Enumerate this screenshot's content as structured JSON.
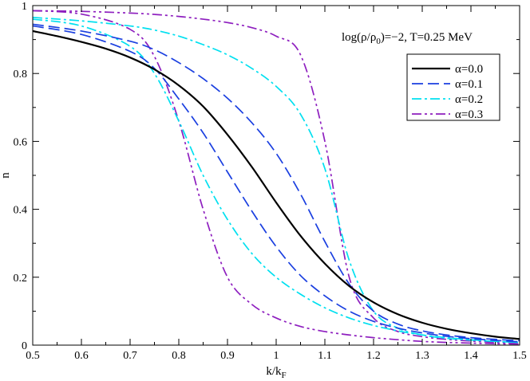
{
  "chart_data": {
    "type": "line",
    "xlabel": "k/k",
    "xlabel_sub": "F",
    "ylabel": "n",
    "xlim": [
      0.5,
      1.5
    ],
    "ylim": [
      0,
      1
    ],
    "xticks": [
      0.5,
      0.6,
      0.7,
      0.8,
      0.9,
      1.0,
      1.1,
      1.2,
      1.3,
      1.4,
      1.5
    ],
    "xtick_labels": [
      "0.5",
      "0.6",
      "0.7",
      "0.8",
      "0.9",
      "1",
      "1.1",
      "1.2",
      "1.3",
      "1.4",
      "1.5"
    ],
    "yticks": [
      0,
      0.2,
      0.4,
      0.6,
      0.8,
      1.0
    ],
    "ytick_labels": [
      "0",
      "0.2",
      "0.4",
      "0.6",
      "0.8",
      "1"
    ],
    "annotation": {
      "prefix": "log(ρ/ρ",
      "sub": "0",
      "suffix": ")=−2, T=0.25 MeV"
    },
    "legend_position": "top-right",
    "grid": false,
    "series": [
      {
        "name": "α=0.0",
        "color": "#000000",
        "dash": "solid",
        "x": [
          0.5,
          0.55,
          0.6,
          0.65,
          0.7,
          0.75,
          0.8,
          0.85,
          0.9,
          0.95,
          1.0,
          1.05,
          1.1,
          1.15,
          1.2,
          1.25,
          1.3,
          1.35,
          1.4,
          1.45,
          1.5
        ],
        "y": [
          0.925,
          0.91,
          0.893,
          0.873,
          0.847,
          0.812,
          0.765,
          0.703,
          0.62,
          0.525,
          0.42,
          0.322,
          0.24,
          0.174,
          0.126,
          0.091,
          0.066,
          0.048,
          0.035,
          0.025,
          0.018
        ]
      },
      {
        "name": "α=0.1",
        "color": "#1a3fe0",
        "dash": "long-dash",
        "x": [
          0.5,
          0.6,
          0.7,
          0.75,
          0.8,
          0.85,
          0.9,
          0.95,
          1.0,
          1.05,
          1.1,
          1.15,
          1.2,
          1.25,
          1.3,
          1.35,
          1.4,
          1.45,
          1.5
        ],
        "y_upper": [
          0.945,
          0.925,
          0.895,
          0.87,
          0.832,
          0.785,
          0.727,
          0.655,
          0.565,
          0.445,
          0.305,
          0.18,
          0.1,
          0.062,
          0.042,
          0.03,
          0.022,
          0.017,
          0.013
        ],
        "y_lower": [
          0.94,
          0.915,
          0.865,
          0.815,
          0.725,
          0.625,
          0.51,
          0.395,
          0.29,
          0.205,
          0.145,
          0.1,
          0.07,
          0.05,
          0.036,
          0.026,
          0.019,
          0.014,
          0.01
        ]
      },
      {
        "name": "α=0.2",
        "color": "#00e0f0",
        "dash": "dash-dot",
        "x": [
          0.5,
          0.6,
          0.7,
          0.75,
          0.8,
          0.85,
          0.9,
          0.95,
          1.0,
          1.05,
          1.1,
          1.15,
          1.2,
          1.25,
          1.3,
          1.35,
          1.4,
          1.45,
          1.5
        ],
        "y_upper": [
          0.965,
          0.955,
          0.94,
          0.928,
          0.91,
          0.885,
          0.855,
          0.815,
          0.762,
          0.68,
          0.52,
          0.25,
          0.1,
          0.05,
          0.03,
          0.02,
          0.015,
          0.011,
          0.008
        ],
        "y_lower": [
          0.96,
          0.94,
          0.88,
          0.8,
          0.66,
          0.5,
          0.37,
          0.27,
          0.2,
          0.15,
          0.11,
          0.08,
          0.058,
          0.042,
          0.03,
          0.022,
          0.016,
          0.011,
          0.008
        ]
      },
      {
        "name": "α=0.3",
        "color": "#8e1fbf",
        "dash": "dash-dot-dot",
        "x": [
          0.5,
          0.6,
          0.7,
          0.75,
          0.8,
          0.85,
          0.9,
          0.95,
          1.0,
          1.05,
          1.1,
          1.15,
          1.2,
          1.25,
          1.3,
          1.35,
          1.4,
          1.45,
          1.5
        ],
        "y_upper": [
          0.985,
          0.983,
          0.978,
          0.974,
          0.968,
          0.96,
          0.95,
          0.935,
          0.91,
          0.855,
          0.6,
          0.2,
          0.08,
          0.04,
          0.025,
          0.017,
          0.012,
          0.008,
          0.005
        ],
        "y_lower": [
          0.985,
          0.975,
          0.93,
          0.85,
          0.66,
          0.4,
          0.2,
          0.12,
          0.08,
          0.055,
          0.04,
          0.03,
          0.022,
          0.016,
          0.011,
          0.008,
          0.006,
          0.004,
          0.003
        ]
      }
    ]
  }
}
